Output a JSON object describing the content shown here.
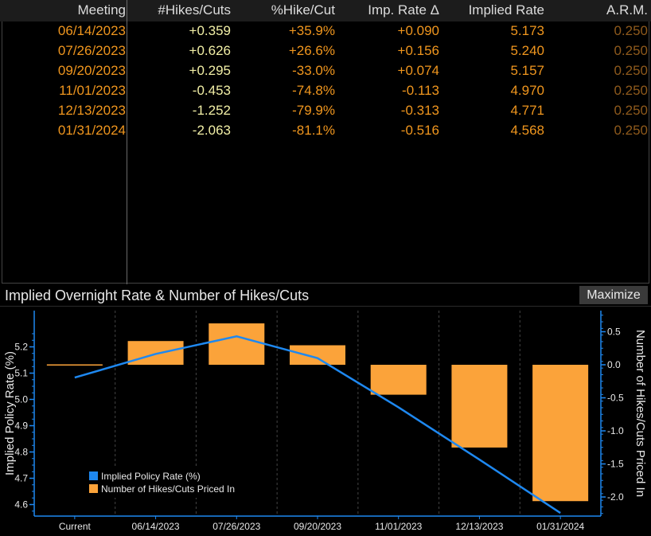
{
  "table": {
    "headers": [
      "Meeting",
      "#Hikes/Cuts",
      "%Hike/Cut",
      "Imp. Rate Δ",
      "Implied Rate",
      "A.R.M."
    ],
    "rows": [
      {
        "meeting": "06/14/2023",
        "hikes": "+0.359",
        "pct": "+35.9%",
        "imp": "+0.090",
        "rate": "5.173",
        "arm": "0.250"
      },
      {
        "meeting": "07/26/2023",
        "hikes": "+0.626",
        "pct": "+26.6%",
        "imp": "+0.156",
        "rate": "5.240",
        "arm": "0.250"
      },
      {
        "meeting": "09/20/2023",
        "hikes": "+0.295",
        "pct": "-33.0%",
        "imp": "+0.074",
        "rate": "5.157",
        "arm": "0.250"
      },
      {
        "meeting": "11/01/2023",
        "hikes": "-0.453",
        "pct": "-74.8%",
        "imp": "-0.113",
        "rate": "4.970",
        "arm": "0.250"
      },
      {
        "meeting": "12/13/2023",
        "hikes": "-1.252",
        "pct": "-79.9%",
        "imp": "-0.313",
        "rate": "4.771",
        "arm": "0.250"
      },
      {
        "meeting": "01/31/2024",
        "hikes": "-2.063",
        "pct": "-81.1%",
        "imp": "-0.516",
        "rate": "4.568",
        "arm": "0.250"
      }
    ]
  },
  "chart_panel": {
    "title": "Implied Overnight Rate & Number of Hikes/Cuts",
    "maximize_label": "Maximize"
  },
  "chart_data": {
    "type": "bar",
    "categories": [
      "Current",
      "06/14/2023",
      "07/26/2023",
      "09/20/2023",
      "11/01/2023",
      "12/13/2023",
      "01/31/2024"
    ],
    "series": [
      {
        "name": "Implied Policy Rate (%)",
        "type": "line",
        "axis": "left",
        "color": "#1e88f0",
        "values": [
          5.083,
          5.173,
          5.24,
          5.157,
          4.97,
          4.771,
          4.568
        ]
      },
      {
        "name": "Number of Hikes/Cuts Priced In",
        "type": "bar",
        "axis": "right",
        "color": "#fba33a",
        "values": [
          0.0,
          0.359,
          0.626,
          0.295,
          -0.453,
          -1.252,
          -2.063
        ]
      }
    ],
    "ylabel_left": "Implied Policy Rate (%)",
    "ylabel_right": "Number of Hikes/Cuts Priced In",
    "y_left_ticks": [
      "5.2",
      "5.1",
      "5.0",
      "4.9",
      "4.8",
      "4.7",
      "4.6"
    ],
    "y_right_ticks": [
      "0.5",
      "0.0",
      "-0.5",
      "-1.0",
      "-1.5",
      "-2.0"
    ],
    "legend": [
      "Implied Policy Rate (%)",
      "Number of Hikes/Cuts Priced In"
    ],
    "legend_position": "bottom-left",
    "axis_color": "#1e88f0",
    "bar_color": "#fba33a",
    "line_color": "#1e88f0"
  }
}
